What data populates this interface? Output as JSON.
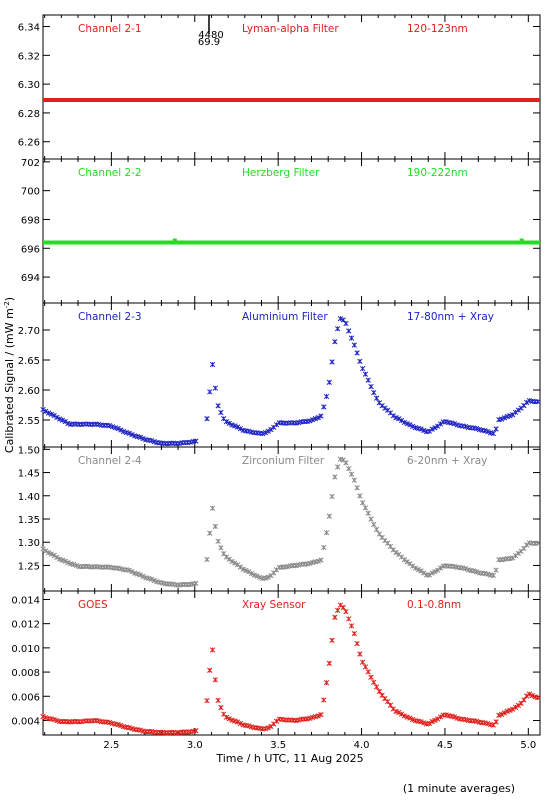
{
  "ylabel": "Calibrated Signal / (mW m",
  "ylabel_sup": "-2",
  "ylabel_end": ")",
  "xlabel": "Time / h UTC, 11 Aug 2025",
  "footnote": "(1 minute averages)",
  "overflow_marker": {
    "top": "4480",
    "bottom": "69.9"
  },
  "x_ticks": [
    "2.5",
    "3.0",
    "3.5",
    "4.0",
    "4.5",
    "5.0"
  ],
  "chart_data": [
    {
      "type": "scatter",
      "channel": "Channel 2-1",
      "filter": "Lyman-alpha Filter",
      "band": "120-123nm",
      "color": "#e0201c",
      "xlim": [
        2.09,
        5.07
      ],
      "ylim": [
        6.248,
        6.348
      ],
      "yticks": [
        6.26,
        6.28,
        6.3,
        6.32,
        6.34
      ],
      "ytick_labels": [
        "6.26",
        "6.28",
        "6.30",
        "6.32",
        "6.34"
      ],
      "flat_level": 6.289
    },
    {
      "type": "scatter",
      "channel": "Channel 2-2",
      "filter": "Herzberg Filter",
      "band": "190-222nm",
      "color": "#22dd22",
      "xlim": [
        2.09,
        5.07
      ],
      "ylim": [
        692.2,
        702.2
      ],
      "yticks": [
        694,
        696,
        698,
        700,
        702
      ],
      "ytick_labels": [
        "694",
        "696",
        "698",
        "700",
        "702"
      ],
      "flat_level": 696.4
    },
    {
      "type": "scatter",
      "channel": "Channel 2-3",
      "filter": "Aluminium Filter",
      "band": "17-80nm + Xray",
      "color": "#1f24c4",
      "xlim": [
        2.09,
        5.07
      ],
      "ylim": [
        2.505,
        2.745
      ],
      "yticks": [
        2.55,
        2.6,
        2.65,
        2.7
      ],
      "ytick_labels": [
        "2.55",
        "2.60",
        "2.65",
        "2.70"
      ],
      "profile": [
        [
          2.09,
          2.567
        ],
        [
          2.25,
          2.543
        ],
        [
          2.4,
          2.543
        ],
        [
          2.5,
          2.54
        ],
        [
          2.6,
          2.528
        ],
        [
          2.7,
          2.518
        ],
        [
          2.8,
          2.511
        ],
        [
          2.9,
          2.511
        ],
        [
          3.0,
          2.514
        ],
        [
          3.06,
          2.52
        ],
        [
          3.085,
          2.58
        ],
        [
          3.1,
          2.632
        ],
        [
          3.11,
          2.648
        ],
        [
          3.13,
          2.58
        ],
        [
          3.18,
          2.548
        ],
        [
          3.3,
          2.532
        ],
        [
          3.4,
          2.527
        ],
        [
          3.45,
          2.532
        ],
        [
          3.5,
          2.545
        ],
        [
          3.6,
          2.545
        ],
        [
          3.7,
          2.549
        ],
        [
          3.76,
          2.557
        ],
        [
          3.8,
          2.6
        ],
        [
          3.84,
          2.68
        ],
        [
          3.87,
          2.72
        ],
        [
          3.9,
          2.715
        ],
        [
          3.95,
          2.68
        ],
        [
          4.0,
          2.64
        ],
        [
          4.1,
          2.58
        ],
        [
          4.2,
          2.555
        ],
        [
          4.3,
          2.54
        ],
        [
          4.4,
          2.53
        ],
        [
          4.5,
          2.548
        ],
        [
          4.6,
          2.54
        ],
        [
          4.7,
          2.535
        ],
        [
          4.8,
          2.527
        ],
        [
          4.82,
          2.55
        ],
        [
          4.9,
          2.558
        ],
        [
          4.95,
          2.568
        ],
        [
          5.0,
          2.582
        ],
        [
          5.07,
          2.58
        ]
      ]
    },
    {
      "type": "scatter",
      "channel": "Channel 2-4",
      "filter": "Zirconium Filter",
      "band": "6-20nm + Xray",
      "color": "#8a8a8a",
      "xlim": [
        2.09,
        5.07
      ],
      "ylim": [
        1.195,
        1.505
      ],
      "yticks": [
        1.25,
        1.3,
        1.35,
        1.4,
        1.45,
        1.5
      ],
      "ytick_labels": [
        "1.25",
        "1.30",
        "1.35",
        "1.40",
        "1.45",
        "1.50"
      ],
      "profile": [
        [
          2.09,
          1.285
        ],
        [
          2.2,
          1.262
        ],
        [
          2.3,
          1.248
        ],
        [
          2.5,
          1.246
        ],
        [
          2.6,
          1.24
        ],
        [
          2.7,
          1.225
        ],
        [
          2.8,
          1.212
        ],
        [
          2.9,
          1.208
        ],
        [
          3.0,
          1.21
        ],
        [
          3.06,
          1.22
        ],
        [
          3.085,
          1.3
        ],
        [
          3.1,
          1.36
        ],
        [
          3.11,
          1.38
        ],
        [
          3.13,
          1.31
        ],
        [
          3.18,
          1.27
        ],
        [
          3.3,
          1.24
        ],
        [
          3.4,
          1.222
        ],
        [
          3.45,
          1.225
        ],
        [
          3.5,
          1.245
        ],
        [
          3.6,
          1.25
        ],
        [
          3.7,
          1.255
        ],
        [
          3.76,
          1.262
        ],
        [
          3.8,
          1.34
        ],
        [
          3.84,
          1.44
        ],
        [
          3.87,
          1.48
        ],
        [
          3.9,
          1.475
        ],
        [
          3.95,
          1.44
        ],
        [
          4.0,
          1.39
        ],
        [
          4.1,
          1.32
        ],
        [
          4.2,
          1.28
        ],
        [
          4.3,
          1.25
        ],
        [
          4.4,
          1.228
        ],
        [
          4.5,
          1.25
        ],
        [
          4.6,
          1.245
        ],
        [
          4.7,
          1.235
        ],
        [
          4.8,
          1.228
        ],
        [
          4.82,
          1.262
        ],
        [
          4.9,
          1.265
        ],
        [
          4.95,
          1.278
        ],
        [
          5.0,
          1.298
        ],
        [
          5.07,
          1.298
        ]
      ]
    },
    {
      "type": "scatter",
      "channel": "GOES",
      "filter": "Xray Sensor",
      "band": "0.1-0.8nm",
      "color": "#e0201c",
      "xlim": [
        2.09,
        5.07
      ],
      "ylim": [
        0.0028,
        0.0147
      ],
      "yticks": [
        0.004,
        0.006,
        0.008,
        0.01,
        0.012,
        0.014
      ],
      "ytick_labels": [
        "0.004",
        "0.006",
        "0.008",
        "0.010",
        "0.012",
        "0.014"
      ],
      "profile": [
        [
          2.09,
          0.0043
        ],
        [
          2.2,
          0.0039
        ],
        [
          2.3,
          0.0039
        ],
        [
          2.4,
          0.004
        ],
        [
          2.5,
          0.0038
        ],
        [
          2.6,
          0.0034
        ],
        [
          2.7,
          0.0031
        ],
        [
          2.8,
          0.003
        ],
        [
          2.9,
          0.003
        ],
        [
          3.0,
          0.0031
        ],
        [
          3.06,
          0.0035
        ],
        [
          3.085,
          0.0075
        ],
        [
          3.1,
          0.0095
        ],
        [
          3.11,
          0.01
        ],
        [
          3.13,
          0.006
        ],
        [
          3.18,
          0.0043
        ],
        [
          3.3,
          0.0036
        ],
        [
          3.4,
          0.0033
        ],
        [
          3.45,
          0.0034
        ],
        [
          3.5,
          0.0041
        ],
        [
          3.6,
          0.004
        ],
        [
          3.7,
          0.0042
        ],
        [
          3.76,
          0.0045
        ],
        [
          3.8,
          0.008
        ],
        [
          3.84,
          0.0125
        ],
        [
          3.87,
          0.0136
        ],
        [
          3.9,
          0.0132
        ],
        [
          3.95,
          0.0115
        ],
        [
          4.0,
          0.009
        ],
        [
          4.1,
          0.0065
        ],
        [
          4.2,
          0.0048
        ],
        [
          4.3,
          0.0041
        ],
        [
          4.4,
          0.0037
        ],
        [
          4.5,
          0.0045
        ],
        [
          4.6,
          0.0041
        ],
        [
          4.7,
          0.0039
        ],
        [
          4.8,
          0.0036
        ],
        [
          4.82,
          0.0044
        ],
        [
          4.9,
          0.0049
        ],
        [
          4.95,
          0.0053
        ],
        [
          5.0,
          0.0062
        ],
        [
          5.07,
          0.0058
        ]
      ]
    }
  ]
}
